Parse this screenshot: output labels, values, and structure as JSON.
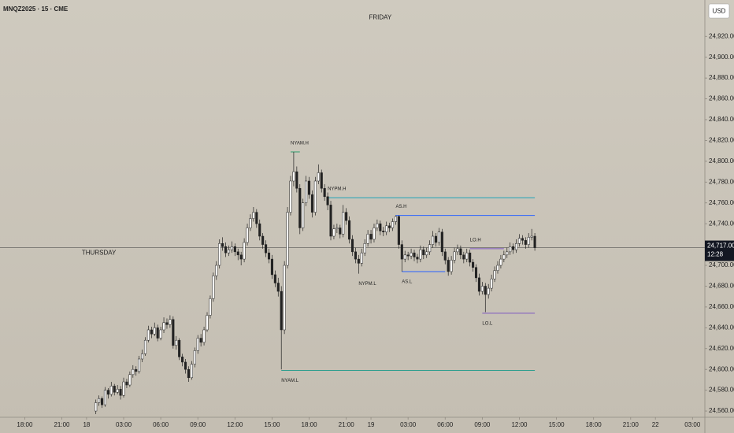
{
  "chart_data": {
    "type": "candlestick",
    "title": "MNQZ2025 · 15 · CME",
    "currency": "USD",
    "last_price": {
      "value": 24717,
      "label": "24,717.00"
    },
    "countdown": "12:28",
    "xlim": [
      0,
      228
    ],
    "ylim": [
      24554,
      24955
    ],
    "yticks": [
      {
        "value": 24560,
        "label": "24,560.00"
      },
      {
        "value": 24580,
        "label": "24,580.00"
      },
      {
        "value": 24600,
        "label": "24,600.00"
      },
      {
        "value": 24620,
        "label": "24,620.00"
      },
      {
        "value": 24640,
        "label": "24,640.00"
      },
      {
        "value": 24660,
        "label": "24,660.00"
      },
      {
        "value": 24680,
        "label": "24,680.00"
      },
      {
        "value": 24700,
        "label": "24,700.00"
      },
      {
        "value": 24740,
        "label": "24,740.00"
      },
      {
        "value": 24760,
        "label": "24,760.00"
      },
      {
        "value": 24780,
        "label": "24,780.00"
      },
      {
        "value": 24800,
        "label": "24,800.00"
      },
      {
        "value": 24820,
        "label": "24,820.00"
      },
      {
        "value": 24840,
        "label": "24,840.00"
      },
      {
        "value": 24860,
        "label": "24,860.00"
      },
      {
        "value": 24880,
        "label": "24,880.00"
      },
      {
        "value": 24900,
        "label": "24,900.00"
      },
      {
        "value": 24920,
        "label": "24,920.00"
      }
    ],
    "xticks": [
      {
        "value": 8,
        "label": "18:00"
      },
      {
        "value": 20,
        "label": "21:00"
      },
      {
        "value": 28,
        "label": "18"
      },
      {
        "value": 40,
        "label": "03:00"
      },
      {
        "value": 52,
        "label": "06:00"
      },
      {
        "value": 64,
        "label": "09:00"
      },
      {
        "value": 76,
        "label": "12:00"
      },
      {
        "value": 88,
        "label": "15:00"
      },
      {
        "value": 100,
        "label": "18:00"
      },
      {
        "value": 112,
        "label": "21:00"
      },
      {
        "value": 120,
        "label": "19"
      },
      {
        "value": 132,
        "label": "03:00"
      },
      {
        "value": 144,
        "label": "06:00"
      },
      {
        "value": 156,
        "label": "09:00"
      },
      {
        "value": 168,
        "label": "12:00"
      },
      {
        "value": 180,
        "label": "15:00"
      },
      {
        "value": 192,
        "label": "18:00"
      },
      {
        "value": 204,
        "label": "21:00"
      },
      {
        "value": 212,
        "label": "22"
      },
      {
        "value": 224,
        "label": "03:00"
      }
    ],
    "up_color": "#ffffff",
    "down_color": "#222222",
    "x": [
      31,
      32,
      33,
      34,
      35,
      36,
      37,
      38,
      39,
      40,
      41,
      42,
      43,
      44,
      45,
      46,
      47,
      48,
      49,
      50,
      51,
      52,
      53,
      54,
      55,
      56,
      57,
      58,
      59,
      60,
      61,
      62,
      63,
      64,
      65,
      66,
      67,
      68,
      69,
      70,
      71,
      72,
      73,
      74,
      75,
      76,
      77,
      78,
      79,
      80,
      81,
      82,
      83,
      84,
      85,
      86,
      87,
      88,
      89,
      90,
      91,
      92,
      93,
      94,
      95,
      96,
      97,
      98,
      99,
      100,
      101,
      102,
      103,
      104,
      105,
      106,
      107,
      108,
      109,
      110,
      111,
      112,
      113,
      114,
      115,
      116,
      117,
      118,
      119,
      120,
      121,
      122,
      123,
      124,
      125,
      126,
      127,
      128,
      129,
      130,
      131,
      132,
      133,
      134,
      135,
      136,
      137,
      138,
      139,
      140,
      141,
      142,
      143,
      144,
      145,
      146,
      147,
      148,
      149,
      150,
      151,
      152,
      153,
      154,
      155,
      156,
      157,
      158,
      159,
      160,
      161,
      162,
      163,
      164,
      165,
      166,
      167,
      168,
      169,
      170,
      171,
      172,
      173
    ],
    "ohlc": [
      [
        24560,
        24571,
        24557,
        24568
      ],
      [
        24568,
        24575,
        24565,
        24572
      ],
      [
        24572,
        24574,
        24563,
        24566
      ],
      [
        24566,
        24583,
        24564,
        24580
      ],
      [
        24580,
        24582,
        24572,
        24576
      ],
      [
        24576,
        24588,
        24574,
        24584
      ],
      [
        24584,
        24586,
        24575,
        24578
      ],
      [
        24578,
        24585,
        24576,
        24581
      ],
      [
        24581,
        24584,
        24571,
        24575
      ],
      [
        24575,
        24592,
        24573,
        24588
      ],
      [
        24588,
        24591,
        24582,
        24585
      ],
      [
        24585,
        24598,
        24583,
        24595
      ],
      [
        24595,
        24604,
        24592,
        24600
      ],
      [
        24600,
        24603,
        24594,
        24598
      ],
      [
        24598,
        24613,
        24596,
        24610
      ],
      [
        24610,
        24619,
        24607,
        24615
      ],
      [
        24615,
        24631,
        24613,
        24628
      ],
      [
        24628,
        24642,
        24626,
        24638
      ],
      [
        24638,
        24641,
        24630,
        24634
      ],
      [
        24634,
        24645,
        24632,
        24640
      ],
      [
        24640,
        24643,
        24627,
        24630
      ],
      [
        24630,
        24641,
        24628,
        24638
      ],
      [
        24638,
        24650,
        24635,
        24645
      ],
      [
        24645,
        24649,
        24639,
        24643
      ],
      [
        24643,
        24652,
        24640,
        24648
      ],
      [
        24648,
        24651,
        24620,
        24623
      ],
      [
        24623,
        24632,
        24619,
        24628
      ],
      [
        24628,
        24630,
        24609,
        24612
      ],
      [
        24612,
        24615,
        24603,
        24607
      ],
      [
        24607,
        24610,
        24596,
        24600
      ],
      [
        24600,
        24603,
        24588,
        24592
      ],
      [
        24592,
        24608,
        24590,
        24605
      ],
      [
        24605,
        24621,
        24602,
        24618
      ],
      [
        24618,
        24633,
        24615,
        24630
      ],
      [
        24630,
        24634,
        24622,
        24626
      ],
      [
        24626,
        24641,
        24623,
        24638
      ],
      [
        24638,
        24655,
        24636,
        24652
      ],
      [
        24652,
        24671,
        24649,
        24668
      ],
      [
        24668,
        24693,
        24665,
        24690
      ],
      [
        24690,
        24704,
        24686,
        24700
      ],
      [
        24700,
        24725,
        24697,
        24721
      ],
      [
        24721,
        24727,
        24714,
        24718
      ],
      [
        24718,
        24722,
        24708,
        24712
      ],
      [
        24712,
        24719,
        24709,
        24715
      ],
      [
        24715,
        24723,
        24712,
        24718
      ],
      [
        24718,
        24721,
        24709,
        24713
      ],
      [
        24713,
        24716,
        24705,
        24710
      ],
      [
        24710,
        24713,
        24700,
        24706
      ],
      [
        24706,
        24726,
        24703,
        24722
      ],
      [
        24722,
        24740,
        24719,
        24736
      ],
      [
        24736,
        24749,
        24733,
        24745
      ],
      [
        24745,
        24756,
        24742,
        24751
      ],
      [
        24751,
        24754,
        24736,
        24740
      ],
      [
        24740,
        24744,
        24724,
        24728
      ],
      [
        24728,
        24731,
        24716,
        24720
      ],
      [
        24720,
        24724,
        24708,
        24712
      ],
      [
        24712,
        24716,
        24702,
        24706
      ],
      [
        24706,
        24710,
        24687,
        24691
      ],
      [
        24691,
        24695,
        24679,
        24683
      ],
      [
        24683,
        24688,
        24670,
        24675
      ],
      [
        24675,
        24680,
        24600,
        24638
      ],
      [
        24638,
        24704,
        24634,
        24700
      ],
      [
        24700,
        24756,
        24697,
        24751
      ],
      [
        24751,
        24786,
        24748,
        24781
      ],
      [
        24781,
        24809,
        24776,
        24790
      ],
      [
        24790,
        24795,
        24770,
        24774
      ],
      [
        24774,
        24778,
        24730,
        24736
      ],
      [
        24736,
        24764,
        24733,
        24760
      ],
      [
        24760,
        24786,
        24757,
        24781
      ],
      [
        24781,
        24785,
        24764,
        24768
      ],
      [
        24768,
        24772,
        24746,
        24751
      ],
      [
        24751,
        24785,
        24748,
        24781
      ],
      [
        24781,
        24797,
        24778,
        24789
      ],
      [
        24789,
        24792,
        24770,
        24774
      ],
      [
        24774,
        24778,
        24762,
        24766
      ],
      [
        24766,
        24770,
        24753,
        24758
      ],
      [
        24758,
        24762,
        24724,
        24728
      ],
      [
        24728,
        24739,
        24725,
        24735
      ],
      [
        24735,
        24740,
        24731,
        24736
      ],
      [
        24736,
        24739,
        24726,
        24730
      ],
      [
        24730,
        24758,
        24727,
        24751
      ],
      [
        24751,
        24755,
        24739,
        24743
      ],
      [
        24743,
        24747,
        24721,
        24725
      ],
      [
        24725,
        24729,
        24709,
        24713
      ],
      [
        24713,
        24717,
        24702,
        24706
      ],
      [
        24706,
        24710,
        24692,
        24702
      ],
      [
        24702,
        24716,
        24699,
        24712
      ],
      [
        24712,
        24725,
        24709,
        24721
      ],
      [
        24721,
        24734,
        24718,
        24730
      ],
      [
        24730,
        24734,
        24721,
        24725
      ],
      [
        24725,
        24740,
        24722,
        24736
      ],
      [
        24736,
        24744,
        24733,
        24740
      ],
      [
        24740,
        24743,
        24729,
        24733
      ],
      [
        24733,
        24737,
        24728,
        24732
      ],
      [
        24732,
        24742,
        24729,
        24738
      ],
      [
        24738,
        24741,
        24732,
        24736
      ],
      [
        24736,
        24745,
        24733,
        24742
      ],
      [
        24742,
        24748,
        24739,
        24747
      ],
      [
        24747,
        24748,
        24716,
        24720
      ],
      [
        24720,
        24724,
        24694,
        24706
      ],
      [
        24706,
        24714,
        24703,
        24710
      ],
      [
        24710,
        24713,
        24705,
        24709
      ],
      [
        24709,
        24716,
        24706,
        24712
      ],
      [
        24712,
        24715,
        24704,
        24708
      ],
      [
        24708,
        24711,
        24702,
        24706
      ],
      [
        24706,
        24719,
        24703,
        24715
      ],
      [
        24715,
        24718,
        24706,
        24710
      ],
      [
        24710,
        24717,
        24707,
        24713
      ],
      [
        24713,
        24724,
        24710,
        24720
      ],
      [
        24720,
        24733,
        24717,
        24728
      ],
      [
        24728,
        24731,
        24718,
        24722
      ],
      [
        24722,
        24736,
        24719,
        24732
      ],
      [
        24732,
        24735,
        24709,
        24713
      ],
      [
        24713,
        24716,
        24701,
        24705
      ],
      [
        24705,
        24708,
        24690,
        24694
      ],
      [
        24694,
        24709,
        24691,
        24705
      ],
      [
        24705,
        24717,
        24702,
        24713
      ],
      [
        24713,
        24720,
        24710,
        24716
      ],
      [
        24716,
        24719,
        24706,
        24710
      ],
      [
        24710,
        24713,
        24702,
        24706
      ],
      [
        24706,
        24716,
        24703,
        24712
      ],
      [
        24712,
        24715,
        24699,
        24703
      ],
      [
        24703,
        24706,
        24694,
        24698
      ],
      [
        24698,
        24701,
        24684,
        24688
      ],
      [
        24688,
        24692,
        24671,
        24675
      ],
      [
        24675,
        24684,
        24672,
        24680
      ],
      [
        24680,
        24683,
        24655,
        24672
      ],
      [
        24672,
        24682,
        24668,
        24678
      ],
      [
        24678,
        24691,
        24675,
        24687
      ],
      [
        24687,
        24699,
        24684,
        24695
      ],
      [
        24695,
        24704,
        24692,
        24700
      ],
      [
        24700,
        24710,
        24697,
        24706
      ],
      [
        24706,
        24714,
        24703,
        24710
      ],
      [
        24710,
        24717,
        24707,
        24713
      ],
      [
        24713,
        24722,
        24710,
        24718
      ],
      [
        24718,
        24721,
        24711,
        24715
      ],
      [
        24715,
        24725,
        24712,
        24721
      ],
      [
        24721,
        24730,
        24718,
        24726
      ],
      [
        24726,
        24729,
        24720,
        24724
      ],
      [
        24724,
        24727,
        24716,
        24720
      ],
      [
        24720,
        24731,
        24717,
        24727
      ],
      [
        24727,
        24735,
        24724,
        24728
      ],
      [
        24728,
        24731,
        24714,
        24717
      ]
    ],
    "levels": [
      {
        "label": "NYAM.H",
        "value": 24809,
        "x": [
          94,
          97
        ],
        "color": "#2e9e6e",
        "side": "above"
      },
      {
        "label": "NYAM.L",
        "value": 24599,
        "x": [
          91,
          173
        ],
        "color": "#2e9e8e",
        "side": "below"
      },
      {
        "label": "NYPM.H",
        "value": 24765,
        "x": [
          106,
          173
        ],
        "color": "#1fa2b8",
        "side": "above"
      },
      {
        "label": "NYPM.L",
        "value": 24692,
        "x": [
          116,
          116
        ],
        "color": "#1fa2b8",
        "side": "below"
      },
      {
        "label": "AS.H",
        "value": 24748,
        "x": [
          128,
          173
        ],
        "color": "#2962ff",
        "side": "above"
      },
      {
        "label": "AS.L",
        "value": 24694,
        "x": [
          130,
          144
        ],
        "color": "#2962ff",
        "side": "below"
      },
      {
        "label": "LO.H",
        "value": 24716,
        "x": [
          152,
          163
        ],
        "color": "#7e57c2",
        "side": "above"
      },
      {
        "label": "LO.L",
        "value": 24654,
        "x": [
          156,
          173
        ],
        "color": "#7e57c2",
        "side": "below"
      }
    ],
    "annotations": [
      {
        "text": "FRIDAY",
        "x": 123,
        "y": 24938
      },
      {
        "text": "THURSDAY",
        "x": 32,
        "y": 24712
      }
    ]
  }
}
